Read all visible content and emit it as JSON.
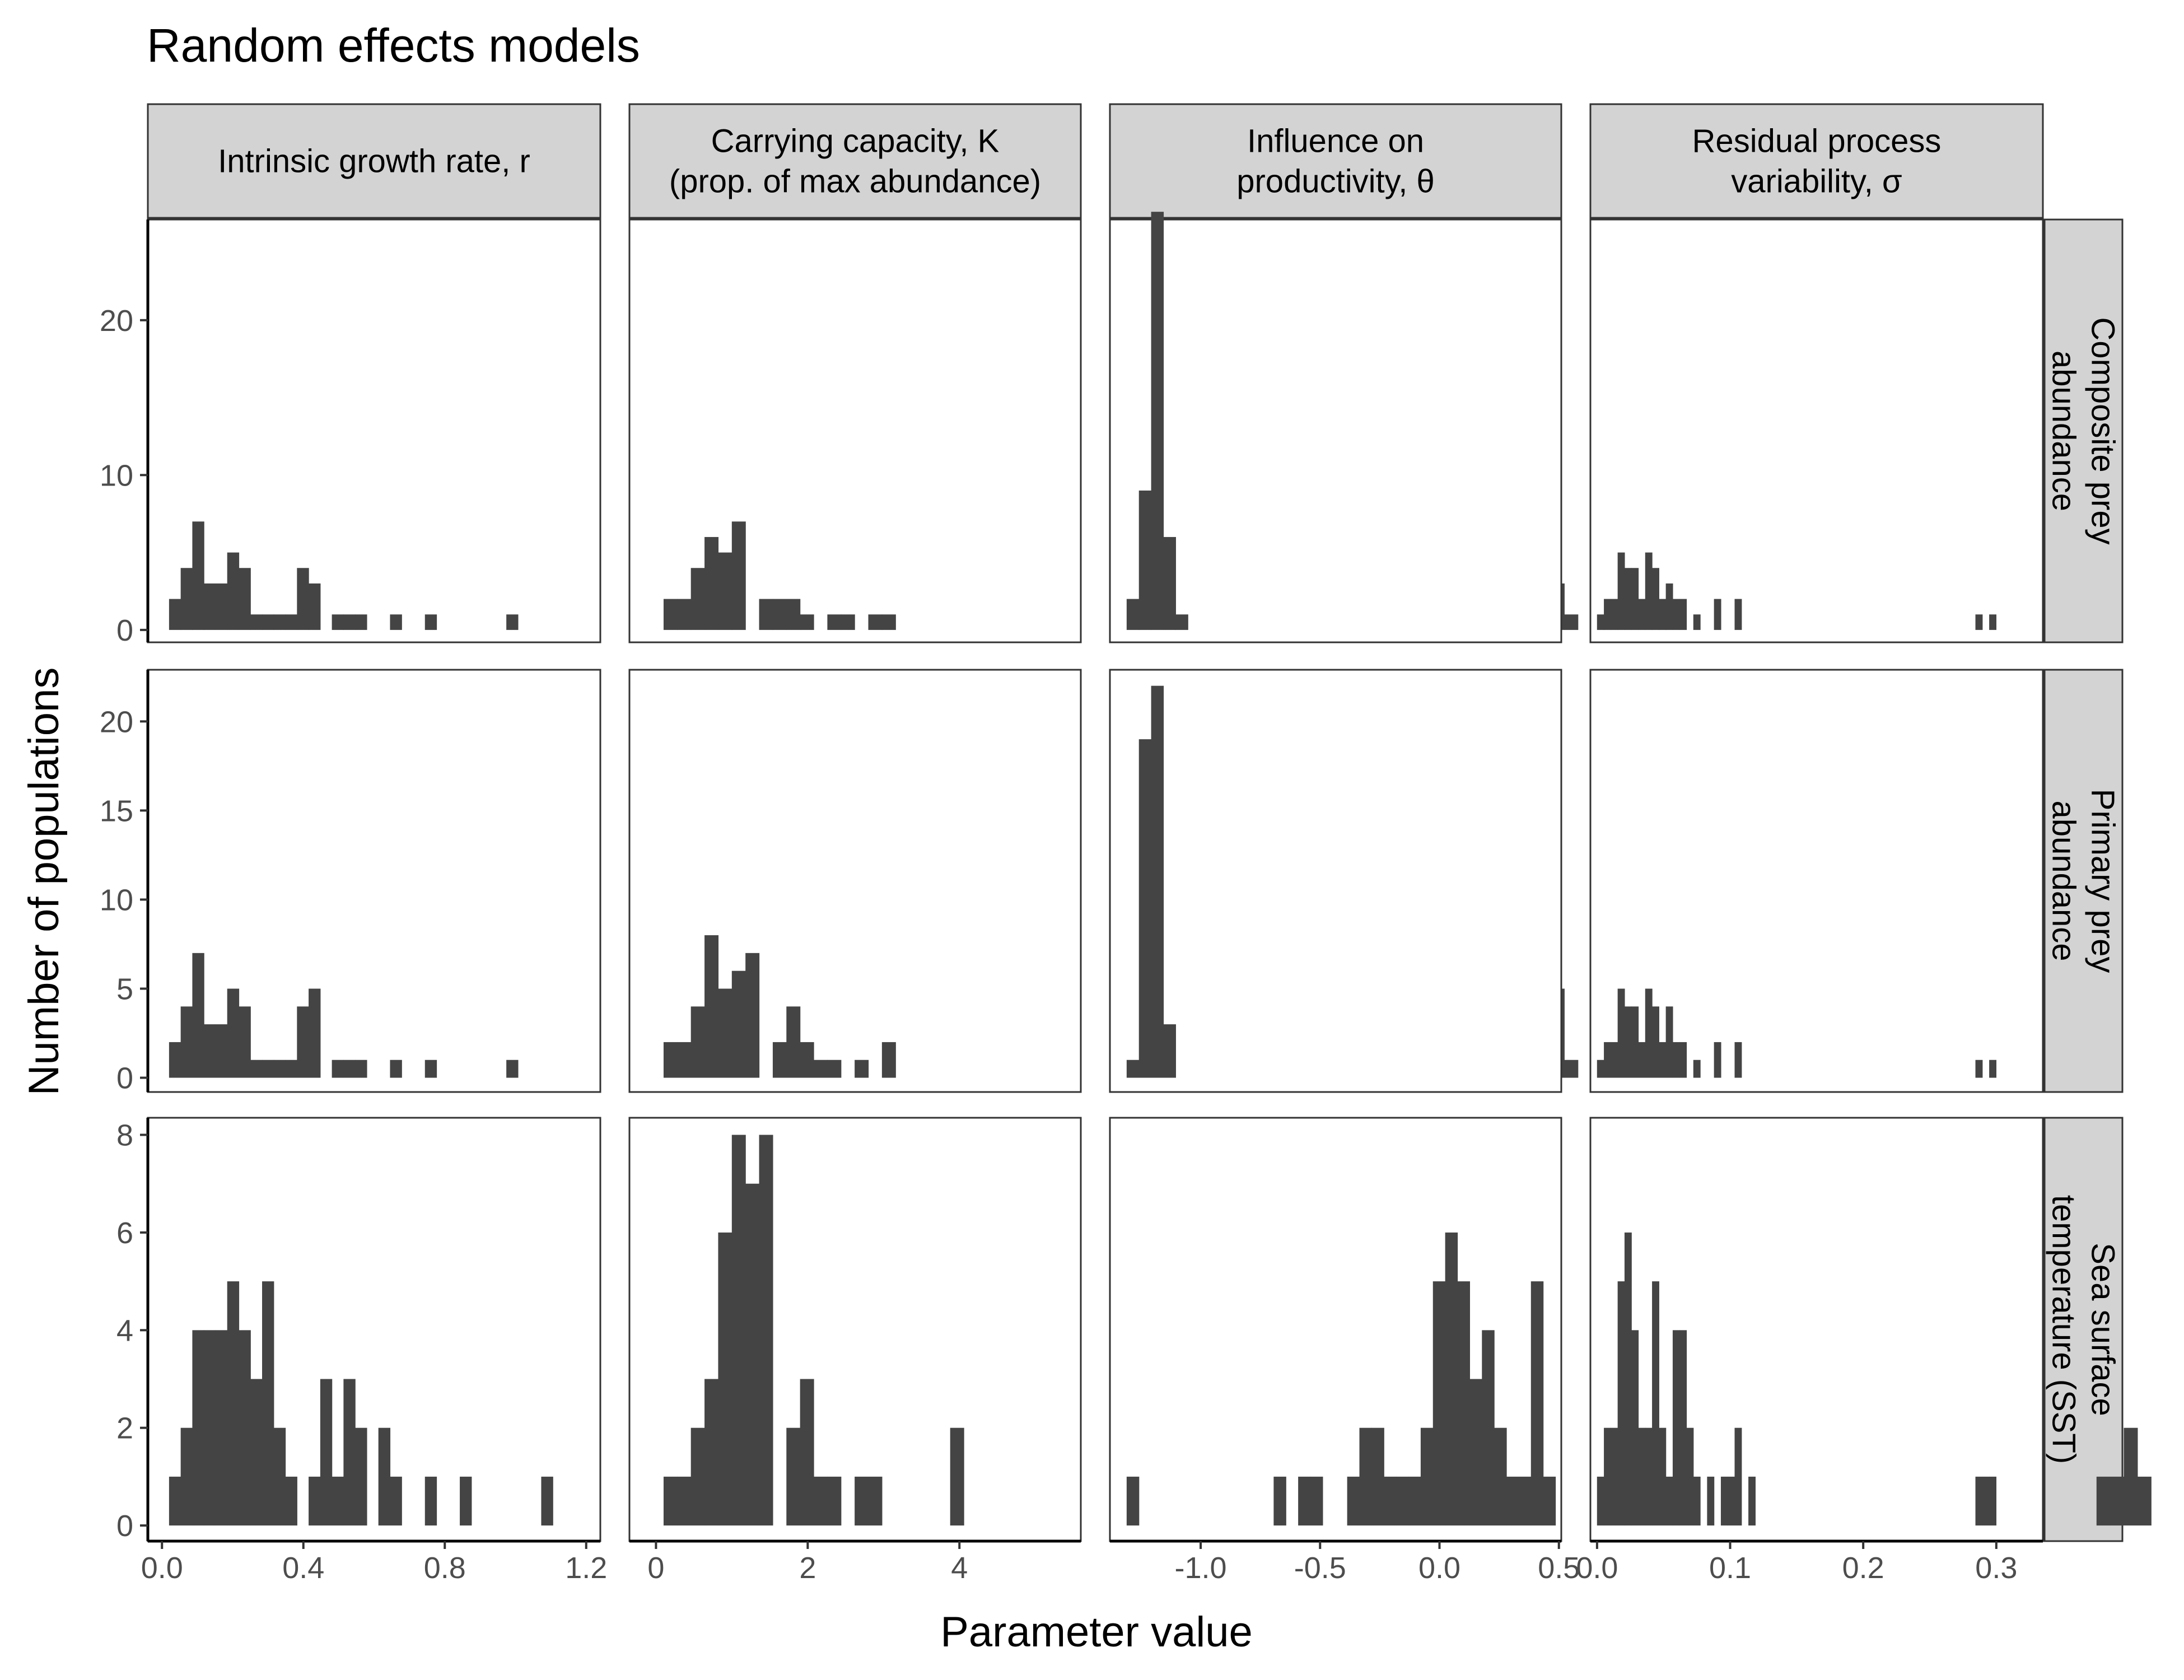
{
  "title": "Random effects models",
  "xlabel": "Parameter value",
  "ylabel": "Number of populations",
  "col_strips": [
    [
      "Intrinsic growth rate, r"
    ],
    [
      "Carrying capacity, K",
      "(prop. of max abundance)"
    ],
    [
      "Influence on",
      "productivity, θ"
    ],
    [
      "Residual process",
      "variability, σ"
    ]
  ],
  "row_strips": [
    [
      "Composite prey",
      "abundance"
    ],
    [
      "Primary prey",
      "abundance"
    ],
    [
      "Sea surface",
      "temperature (SST)"
    ]
  ],
  "colors": {
    "bar": "#444444",
    "strip_bg": "#d3d3d3",
    "frame": "#333333"
  },
  "x_ticks": [
    {
      "values": [
        0.0,
        0.4,
        0.8,
        1.2
      ],
      "labels": [
        "0.0",
        "0.4",
        "0.8",
        "1.2"
      ]
    },
    {
      "values": [
        0,
        2,
        4
      ],
      "labels": [
        "0",
        "2",
        "4"
      ]
    },
    {
      "values": [
        -1.0,
        -0.5,
        0.0,
        0.5
      ],
      "labels": [
        "-1.0",
        "-0.5",
        "0.0",
        "0.5"
      ]
    },
    {
      "values": [
        0.0,
        0.1,
        0.2,
        0.3
      ],
      "labels": [
        "0.0",
        "0.1",
        "0.2",
        "0.3"
      ]
    }
  ],
  "y_ticks": [
    {
      "values": [
        0,
        10,
        20
      ],
      "labels": [
        "0",
        "10",
        "20"
      ]
    },
    {
      "values": [
        0,
        5,
        10,
        15,
        20
      ],
      "labels": [
        "0",
        "5",
        "10",
        "15",
        "20"
      ]
    },
    {
      "values": [
        0,
        2,
        4,
        6,
        8
      ],
      "labels": [
        "0",
        "2",
        "4",
        "6",
        "8"
      ]
    }
  ],
  "chart_data": {
    "type": "bar",
    "subtype": "histogram facet grid (3 rows x 4 columns, shared x per column, free y per row)",
    "title": "Random effects models",
    "xlabel": "Parameter value",
    "ylabel": "Number of populations",
    "xlim": [
      [
        -0.04,
        1.24
      ],
      [
        -0.35,
        5.6
      ],
      [
        -1.38,
        0.51
      ],
      [
        -0.005,
        0.335
      ]
    ],
    "ylim": [
      [
        -0.8,
        26.5
      ],
      [
        -0.8,
        22.9
      ],
      [
        -0.32,
        8.35
      ]
    ],
    "bins": [
      {
        "start": 0.02,
        "width": 0.0329
      },
      {
        "start": 0.1,
        "width": 0.1799
      },
      {
        "start": -1.31,
        "width": 0.0513
      },
      {
        "start": -4e-05,
        "width": 0.00517
      }
    ],
    "panels": [
      {
        "row": 0,
        "col": 0,
        "counts": [
          2,
          4,
          7,
          3,
          3,
          5,
          4,
          1,
          1,
          1,
          1,
          4,
          3,
          0,
          1,
          1,
          1,
          0,
          0,
          1,
          0,
          0,
          1,
          0,
          0,
          0,
          0,
          0,
          0,
          1
        ]
      },
      {
        "row": 0,
        "col": 1,
        "counts": [
          2,
          2,
          4,
          6,
          5,
          7,
          0,
          2,
          2,
          2,
          1,
          0,
          1,
          1,
          0,
          1,
          1,
          0,
          0,
          0,
          0,
          0,
          0,
          0,
          0,
          0,
          0,
          0,
          0,
          0,
          0,
          0,
          0,
          0,
          0,
          0,
          0,
          0,
          0,
          0,
          0,
          0,
          0,
          0,
          0,
          0,
          0,
          0,
          0,
          0,
          0,
          0,
          0,
          0,
          0,
          0,
          0,
          0,
          0,
          0,
          0,
          0,
          0,
          0,
          0,
          3,
          1
        ]
      },
      {
        "row": 0,
        "col": 2,
        "counts": [
          2,
          9,
          27,
          6,
          1
        ]
      },
      {
        "row": 0,
        "col": 3,
        "counts": [
          1,
          2,
          2,
          5,
          4,
          4,
          2,
          5,
          4,
          2,
          3,
          2,
          2,
          0,
          1,
          0,
          0,
          2,
          0,
          0,
          2,
          0,
          0,
          0,
          0,
          0,
          0,
          0,
          0,
          0,
          0,
          0,
          0,
          0,
          0,
          0,
          0,
          0,
          0,
          0,
          0,
          0,
          0,
          0,
          0,
          0,
          0,
          0,
          0,
          0,
          0,
          0,
          0,
          0,
          0,
          1,
          0,
          1
        ]
      },
      {
        "row": 1,
        "col": 0,
        "counts": [
          2,
          4,
          7,
          3,
          3,
          5,
          4,
          1,
          1,
          1,
          1,
          4,
          5,
          0,
          1,
          1,
          1,
          0,
          0,
          1,
          0,
          0,
          1,
          0,
          0,
          0,
          0,
          0,
          0,
          1
        ]
      },
      {
        "row": 1,
        "col": 1,
        "counts": [
          2,
          2,
          4,
          8,
          5,
          6,
          7,
          0,
          2,
          4,
          2,
          1,
          1,
          0,
          1,
          0,
          2,
          0,
          0,
          0,
          0,
          0,
          0,
          0,
          0,
          0,
          0,
          0,
          0,
          0,
          0,
          0,
          0,
          0,
          0,
          0,
          0,
          0,
          0,
          0,
          0,
          0,
          0,
          0,
          0,
          0,
          0,
          0,
          0,
          0,
          0,
          0,
          0,
          0,
          0,
          0,
          0,
          0,
          0,
          0,
          0,
          0,
          0,
          0,
          0,
          5,
          1
        ]
      },
      {
        "row": 1,
        "col": 2,
        "counts": [
          1,
          19,
          22,
          3
        ]
      },
      {
        "row": 1,
        "col": 3,
        "counts": [
          1,
          2,
          2,
          5,
          4,
          4,
          2,
          5,
          4,
          2,
          4,
          2,
          2,
          0,
          1,
          0,
          0,
          2,
          0,
          0,
          2,
          0,
          0,
          0,
          0,
          0,
          0,
          0,
          0,
          0,
          0,
          0,
          0,
          0,
          0,
          0,
          0,
          0,
          0,
          0,
          0,
          0,
          0,
          0,
          0,
          0,
          0,
          0,
          0,
          0,
          0,
          0,
          0,
          0,
          0,
          1,
          0,
          1
        ]
      },
      {
        "row": 2,
        "col": 0,
        "counts": [
          1,
          2,
          4,
          4,
          4,
          5,
          4,
          3,
          5,
          2,
          1,
          0,
          1,
          3,
          1,
          3,
          2,
          0,
          2,
          1,
          0,
          0,
          1,
          0,
          0,
          1,
          0,
          0,
          0,
          0,
          0,
          0,
          1
        ]
      },
      {
        "row": 2,
        "col": 1,
        "counts": [
          1,
          1,
          2,
          3,
          6,
          8,
          7,
          8,
          0,
          2,
          3,
          1,
          1,
          0,
          1,
          1,
          0,
          0,
          0,
          0,
          0,
          2,
          0,
          0,
          0,
          0,
          0,
          0,
          0,
          0,
          0,
          0,
          0,
          0,
          0,
          0,
          0,
          0,
          0,
          0,
          0,
          0,
          0,
          0,
          0,
          0,
          0,
          0,
          0,
          0,
          0,
          0,
          0,
          0,
          0,
          0,
          0,
          0,
          0,
          0,
          0,
          0,
          0,
          0,
          0,
          0,
          0,
          0,
          0,
          0,
          0,
          0,
          0,
          0,
          0,
          0,
          0,
          0,
          0,
          0,
          0,
          0,
          0,
          0,
          0,
          0,
          0,
          0,
          0,
          0,
          0,
          0,
          0,
          0,
          0,
          0,
          0,
          0,
          0,
          0,
          0,
          0,
          0,
          0,
          0,
          1,
          1,
          2,
          1
        ]
      },
      {
        "row": 2,
        "col": 2,
        "counts": [
          1,
          0,
          0,
          0,
          0,
          0,
          0,
          0,
          0,
          0,
          0,
          0,
          1,
          0,
          1,
          1,
          0,
          0,
          1,
          2,
          2,
          1,
          1,
          1,
          2,
          5,
          6,
          5,
          3,
          4,
          2,
          1,
          1,
          5,
          1
        ]
      },
      {
        "row": 2,
        "col": 3,
        "counts": [
          1,
          2,
          2,
          5,
          6,
          4,
          2,
          2,
          5,
          2,
          1,
          4,
          4,
          2,
          1,
          0,
          1,
          0,
          1,
          1,
          2,
          0,
          1,
          0,
          0,
          0,
          0,
          0,
          0,
          0,
          0,
          0,
          0,
          0,
          0,
          0,
          0,
          0,
          0,
          0,
          0,
          0,
          0,
          0,
          0,
          0,
          0,
          0,
          0,
          0,
          0,
          0,
          0,
          0,
          0,
          1,
          1,
          1
        ]
      }
    ]
  }
}
